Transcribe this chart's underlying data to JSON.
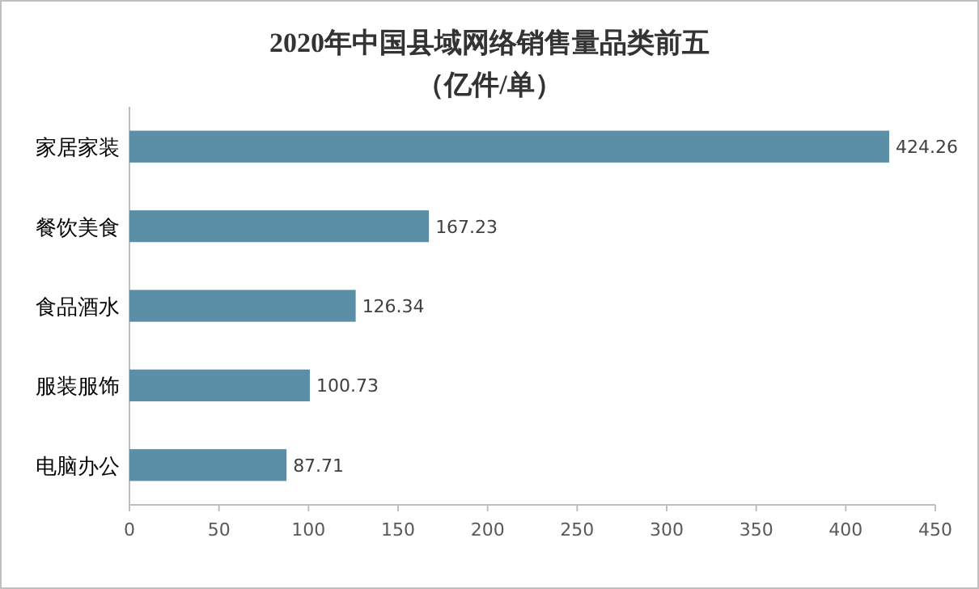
{
  "chart_data": {
    "type": "bar",
    "orientation": "horizontal",
    "title": "2020年中国县域网络销售量品类前五",
    "subtitle": "（亿件/单）",
    "categories": [
      "家居家装",
      "餐饮美食",
      "食品酒水",
      "服装服饰",
      "电脑办公"
    ],
    "values": [
      424.26,
      167.23,
      126.34,
      100.73,
      87.71
    ],
    "value_labels": [
      "424.26",
      "167.23",
      "126.34",
      "100.73",
      "87.71"
    ],
    "color": "#5b8fa8",
    "xlim": [
      0,
      450
    ],
    "xticks": [
      0,
      50,
      100,
      150,
      200,
      250,
      300,
      350,
      400,
      450
    ],
    "grid": false
  }
}
